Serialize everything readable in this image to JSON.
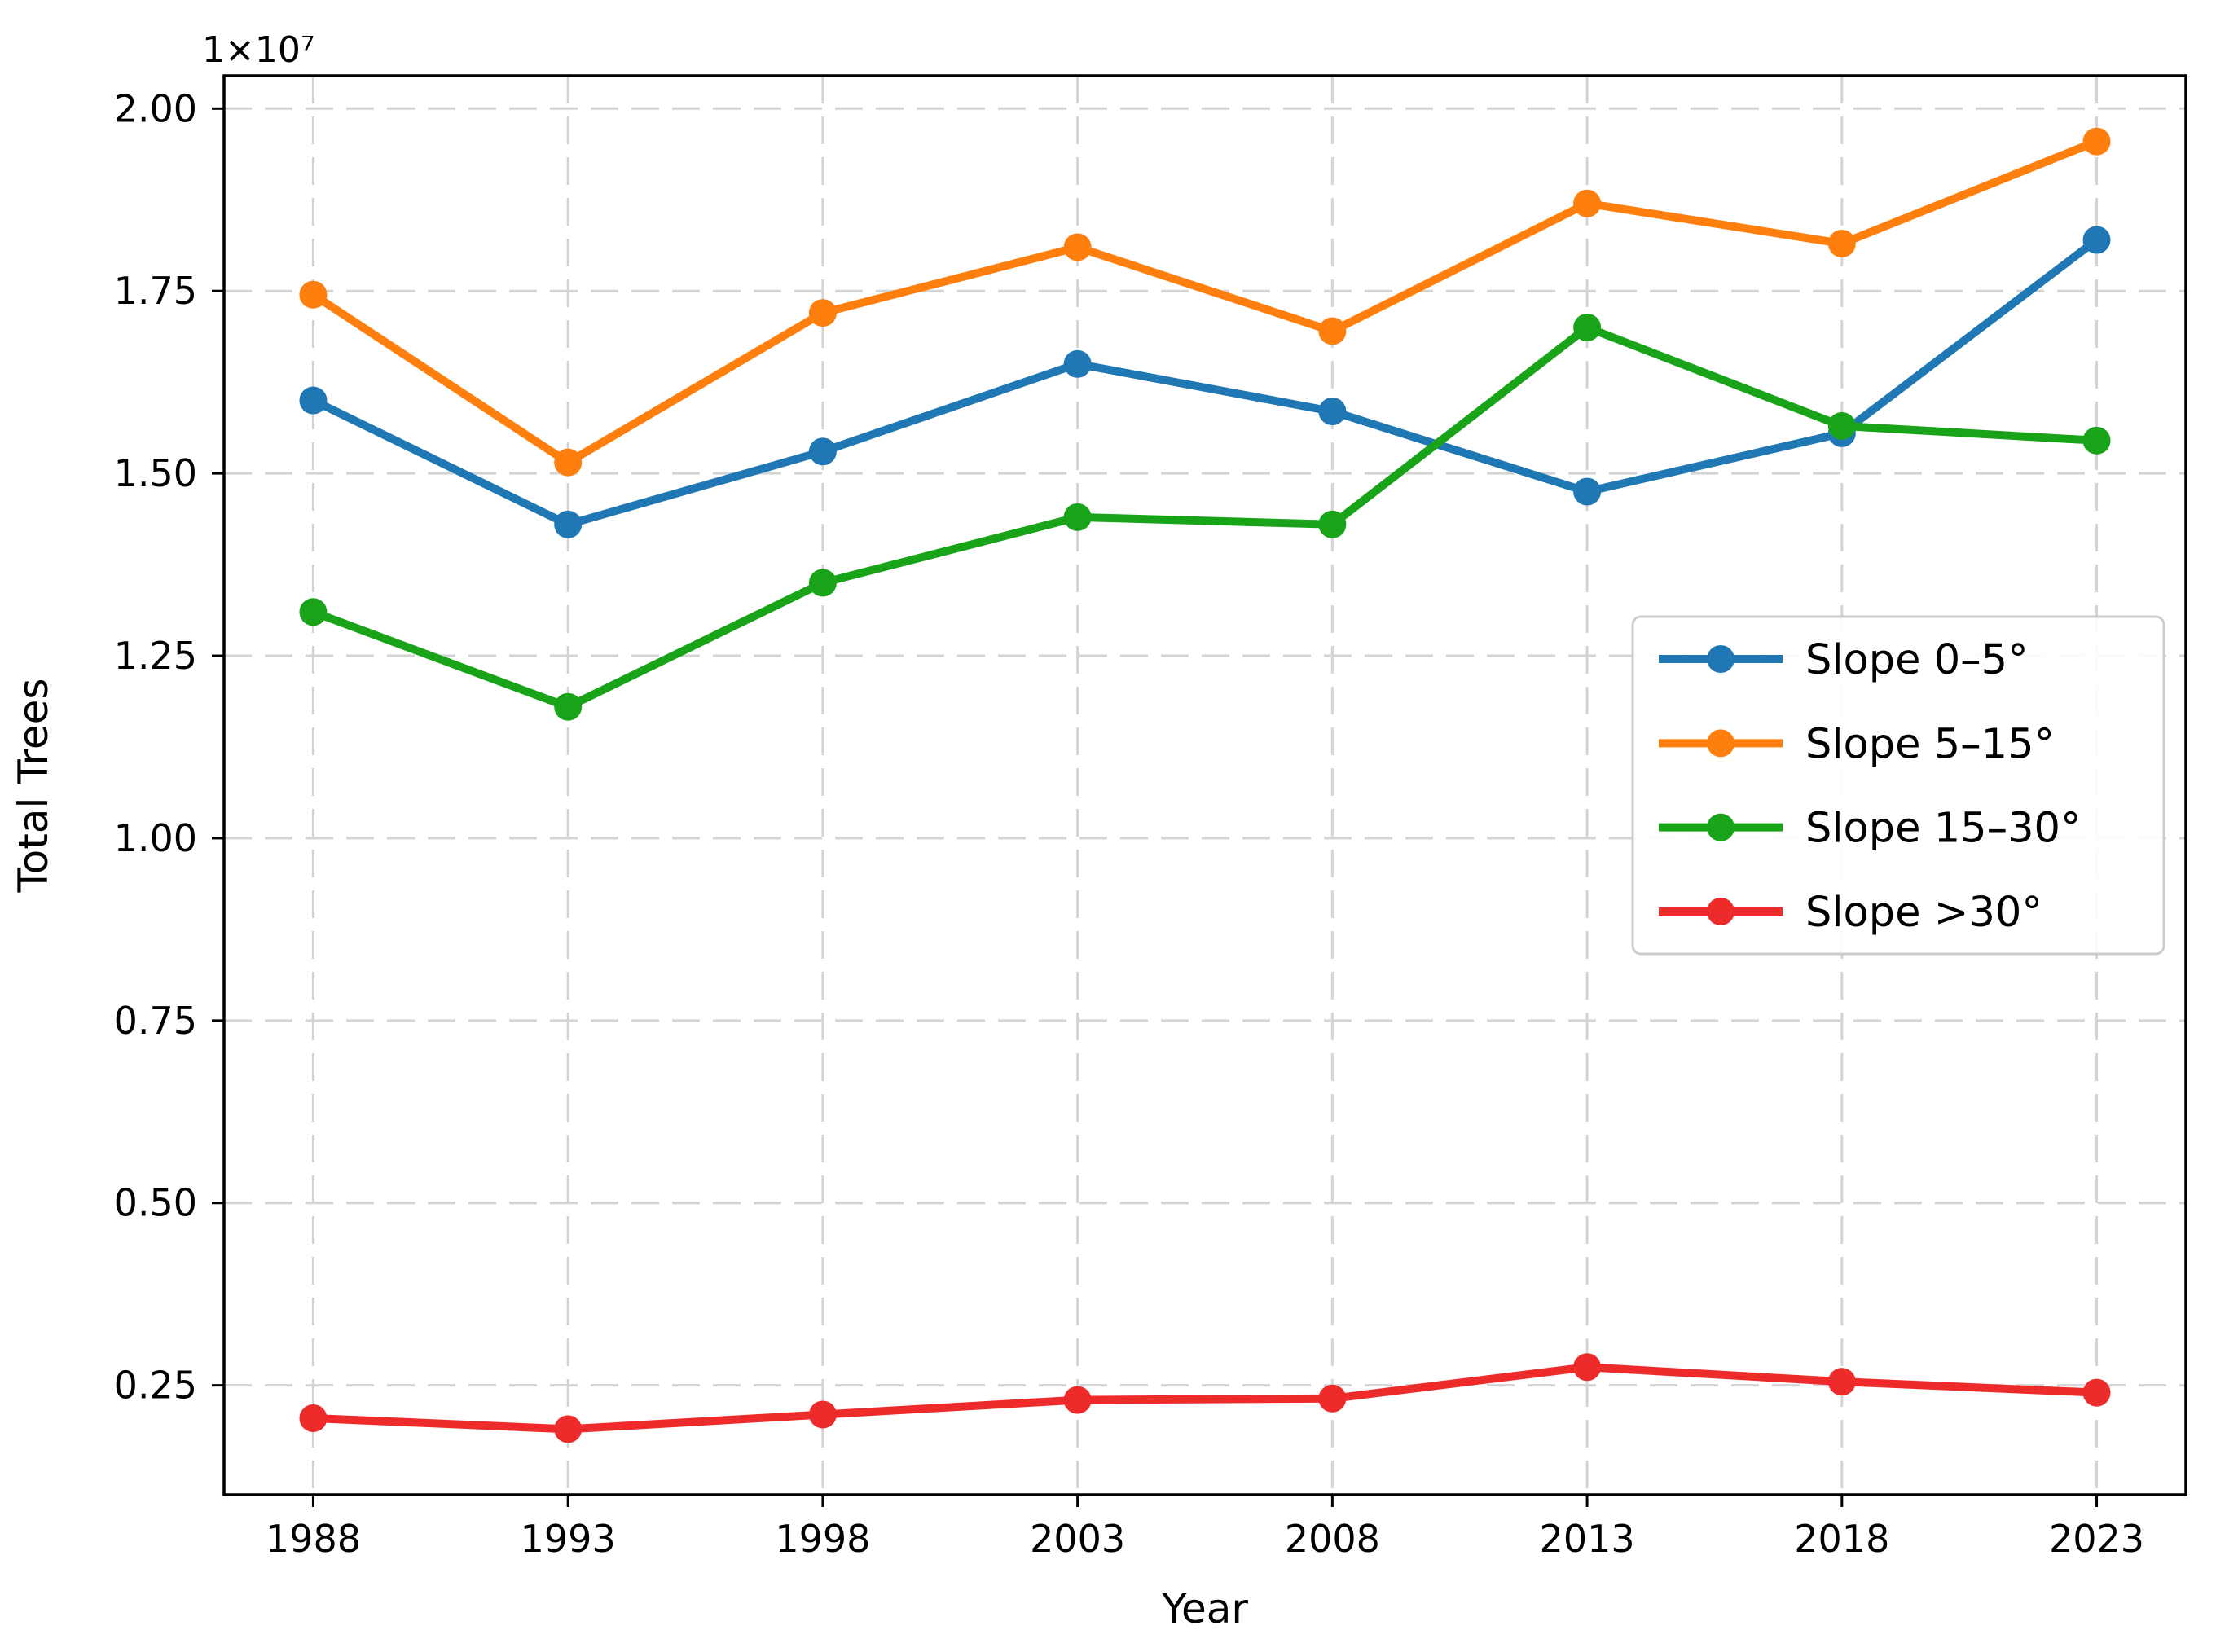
{
  "figure": {
    "offset_text": "1×10⁷",
    "background": "#ffffff",
    "grid_color": "#d4d4d4",
    "spine_color": "#000000",
    "text_color": "#000000",
    "legend_border_color": "#cccccc",
    "legend_background": "#ffffff"
  },
  "chart_data": {
    "type": "line",
    "title": "",
    "xlabel": "Year",
    "ylabel": "Total Trees",
    "unit_note": "values are in units of 1e7 trees (axis offset text 1×10⁷)",
    "x": [
      1988,
      1993,
      1998,
      2003,
      2008,
      2013,
      2018,
      2023
    ],
    "xtick_labels": [
      "1988",
      "1993",
      "1998",
      "2003",
      "2008",
      "2013",
      "2018",
      "2023"
    ],
    "yticks": [
      0.25,
      0.5,
      0.75,
      1.0,
      1.25,
      1.5,
      1.75,
      2.0
    ],
    "ytick_labels": [
      "0.25",
      "0.50",
      "0.75",
      "1.00",
      "1.25",
      "1.50",
      "1.75",
      "2.00"
    ],
    "xlim": [
      1986.25,
      2024.75
    ],
    "ylim": [
      0.1,
      2.045
    ],
    "grid": true,
    "legend_position": "center right",
    "series": [
      {
        "name": "Slope 0–5°",
        "slug": "slope-0-5",
        "color": "#1f77b4",
        "values": [
          1.6,
          1.43,
          1.53,
          1.65,
          1.585,
          1.475,
          1.555,
          1.82
        ]
      },
      {
        "name": "Slope 5–15°",
        "slug": "slope-5-15",
        "color": "#ff7f0e",
        "values": [
          1.745,
          1.515,
          1.72,
          1.81,
          1.695,
          1.87,
          1.815,
          1.955
        ]
      },
      {
        "name": "Slope 15–30°",
        "slug": "slope-15-30",
        "color": "#19a319",
        "values": [
          1.31,
          1.18,
          1.35,
          1.44,
          1.43,
          1.7,
          1.565,
          1.545
        ]
      },
      {
        "name": "Slope >30°",
        "slug": "slope-gt-30",
        "color": "#ee2b2b",
        "values": [
          0.205,
          0.19,
          0.21,
          0.23,
          0.232,
          0.275,
          0.255,
          0.24
        ]
      }
    ]
  }
}
